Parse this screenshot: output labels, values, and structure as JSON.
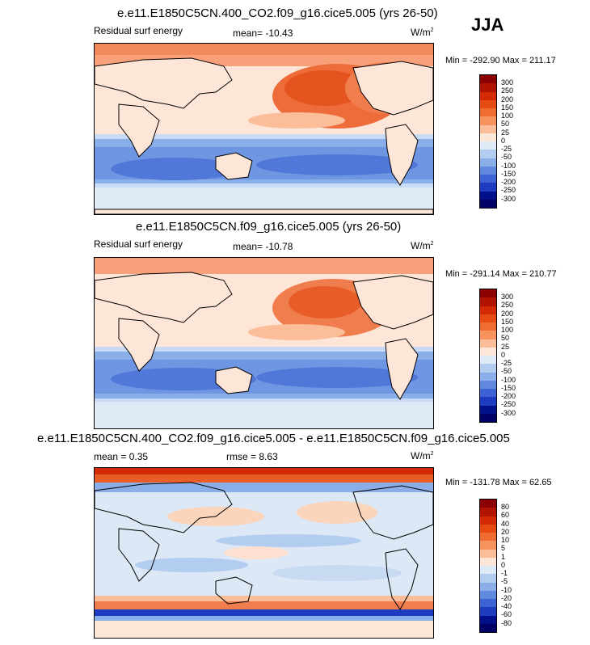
{
  "season": "JJA",
  "units": "W/m",
  "units_sup": "2",
  "panels": [
    {
      "title": "e.e11.E1850C5CN.400_CO2.f09_g16.cice5.005 (yrs 26-50)",
      "left_label": "Residual surf energy",
      "center_label": "mean= -10.43",
      "minmax": "Min = -292.90 Max = 211.17",
      "levels": [
        "300",
        "250",
        "200",
        "150",
        "100",
        "50",
        "25",
        "0",
        "-25",
        "-50",
        "-100",
        "-150",
        "-200",
        "-250",
        "-300"
      ]
    },
    {
      "title": "e.e11.E1850C5CN.f09_g16.cice5.005 (yrs 26-50)",
      "left_label": "Residual surf energy",
      "center_label": "mean= -10.78",
      "minmax": "Min = -291.14 Max = 210.77",
      "levels": [
        "300",
        "250",
        "200",
        "150",
        "100",
        "50",
        "25",
        "0",
        "-25",
        "-50",
        "-100",
        "-150",
        "-200",
        "-250",
        "-300"
      ]
    },
    {
      "title": "e.e11.E1850C5CN.400_CO2.f09_g16.cice5.005 - e.e11.E1850C5CN.f09_g16.cice5.005",
      "left_label": "mean =  0.35",
      "center_label": "rmse =  8.63",
      "minmax": "Min = -131.78 Max =  62.65",
      "levels": [
        "80",
        "60",
        "40",
        "20",
        "10",
        "5",
        "1",
        "0",
        "-1",
        "-5",
        "-10",
        "-20",
        "-40",
        "-60",
        "-80"
      ]
    }
  ],
  "colorbar_colors": [
    "#8b0000",
    "#b01400",
    "#d32a05",
    "#e64b12",
    "#f06c30",
    "#f7935e",
    "#fbbe98",
    "#fde6d8",
    "#deebf7",
    "#b3cdf0",
    "#8aaee8",
    "#6189de",
    "#3d62d3",
    "#1d3cc0",
    "#00108a",
    "#000066"
  ]
}
